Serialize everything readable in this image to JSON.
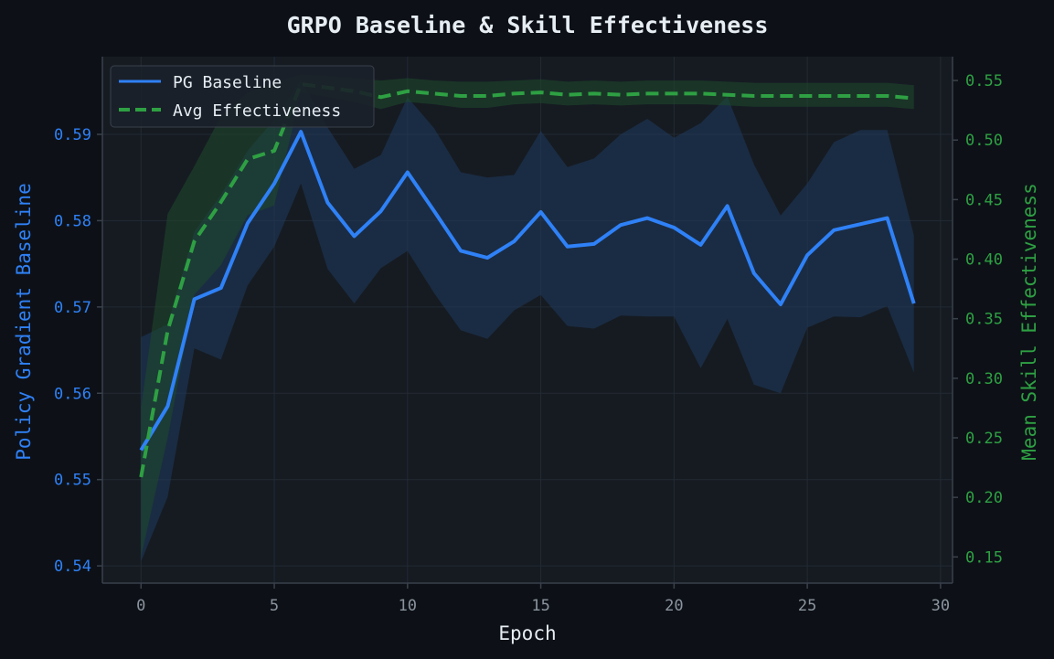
{
  "colors": {
    "background": "#0d1117",
    "plot_background": "#161b22",
    "grid": "#232a33",
    "spine": "#3a414b",
    "title": "#e6edf3",
    "tick": "#8b949e",
    "baseline": "#2f81f7",
    "effectiveness": "#2ea043",
    "baseline_band": "#1f3a5f",
    "effectiveness_band": "#1f4a2b"
  },
  "chart_data": {
    "type": "line",
    "title": "GRPO Baseline & Skill Effectiveness",
    "xlabel": "Epoch",
    "ylabel_left": "Policy Gradient Baseline",
    "ylabel_right": "Mean Skill Effectiveness",
    "xlim": [
      -1.45,
      30.45
    ],
    "ylim_left": [
      0.538,
      0.599
    ],
    "ylim_right": [
      0.128,
      0.57
    ],
    "x_ticks": [
      0,
      5,
      10,
      15,
      20,
      25,
      30
    ],
    "y_ticks_left": [
      0.54,
      0.55,
      0.56,
      0.57,
      0.58,
      0.59
    ],
    "y_ticks_right": [
      0.15,
      0.2,
      0.25,
      0.3,
      0.35,
      0.4,
      0.45,
      0.5,
      0.55
    ],
    "grid": true,
    "legend_position": "top-left",
    "series": [
      {
        "name": "PG Baseline",
        "axis": "left",
        "style": "solid",
        "x": [
          0,
          1,
          2,
          3,
          4,
          5,
          6,
          7,
          8,
          9,
          10,
          11,
          12,
          13,
          14,
          15,
          16,
          17,
          18,
          19,
          20,
          21,
          22,
          23,
          24,
          25,
          26,
          27,
          28,
          29
        ],
        "values": [
          0.5534,
          0.5585,
          0.5709,
          0.5722,
          0.5797,
          0.5843,
          0.5903,
          0.5821,
          0.5782,
          0.5811,
          0.5856,
          0.5811,
          0.5765,
          0.5757,
          0.5776,
          0.581,
          0.577,
          0.5773,
          0.5795,
          0.5803,
          0.5792,
          0.5772,
          0.5817,
          0.5739,
          0.5703,
          0.576,
          0.5789,
          0.5796,
          0.5803,
          0.5704
        ],
        "band_upper": [
          0.5665,
          0.568,
          0.5787,
          0.583,
          0.5881,
          0.5917,
          0.5963,
          0.5908,
          0.586,
          0.5876,
          0.5943,
          0.5907,
          0.5856,
          0.585,
          0.5853,
          0.5904,
          0.5862,
          0.5872,
          0.59,
          0.5918,
          0.5896,
          0.5913,
          0.5944,
          0.5865,
          0.5806,
          0.5843,
          0.5891,
          0.5905,
          0.5905,
          0.5783
        ],
        "band_lower": [
          0.5405,
          0.548,
          0.5652,
          0.5639,
          0.5725,
          0.577,
          0.5843,
          0.5744,
          0.5704,
          0.5745,
          0.5765,
          0.5716,
          0.5673,
          0.5663,
          0.5696,
          0.5714,
          0.5678,
          0.5675,
          0.569,
          0.5689,
          0.5689,
          0.5629,
          0.5686,
          0.561,
          0.56,
          0.5676,
          0.5689,
          0.5688,
          0.5701,
          0.5624
        ]
      },
      {
        "name": "Avg Effectiveness",
        "axis": "right",
        "style": "dashed",
        "x": [
          0,
          1,
          2,
          3,
          4,
          5,
          6,
          7,
          8,
          9,
          10,
          11,
          12,
          13,
          14,
          15,
          16,
          17,
          18,
          19,
          20,
          21,
          22,
          23,
          24,
          25,
          26,
          27,
          28,
          29
        ],
        "values": [
          0.217,
          0.34,
          0.415,
          0.448,
          0.484,
          0.491,
          0.547,
          0.544,
          0.541,
          0.536,
          0.541,
          0.539,
          0.537,
          0.537,
          0.539,
          0.54,
          0.538,
          0.539,
          0.538,
          0.539,
          0.539,
          0.539,
          0.538,
          0.537,
          0.537,
          0.537,
          0.537,
          0.537,
          0.537,
          0.535
        ],
        "band_upper": [
          0.275,
          0.438,
          0.478,
          0.52,
          0.54,
          0.548,
          0.555,
          0.554,
          0.552,
          0.55,
          0.552,
          0.55,
          0.549,
          0.549,
          0.55,
          0.551,
          0.549,
          0.55,
          0.549,
          0.55,
          0.55,
          0.55,
          0.549,
          0.548,
          0.548,
          0.548,
          0.548,
          0.548,
          0.548,
          0.546
        ],
        "band_lower": [
          0.15,
          0.25,
          0.37,
          0.395,
          0.437,
          0.445,
          0.54,
          0.536,
          0.532,
          0.526,
          0.532,
          0.53,
          0.527,
          0.527,
          0.53,
          0.531,
          0.529,
          0.53,
          0.529,
          0.53,
          0.53,
          0.53,
          0.529,
          0.528,
          0.528,
          0.528,
          0.528,
          0.528,
          0.528,
          0.526
        ]
      }
    ]
  }
}
